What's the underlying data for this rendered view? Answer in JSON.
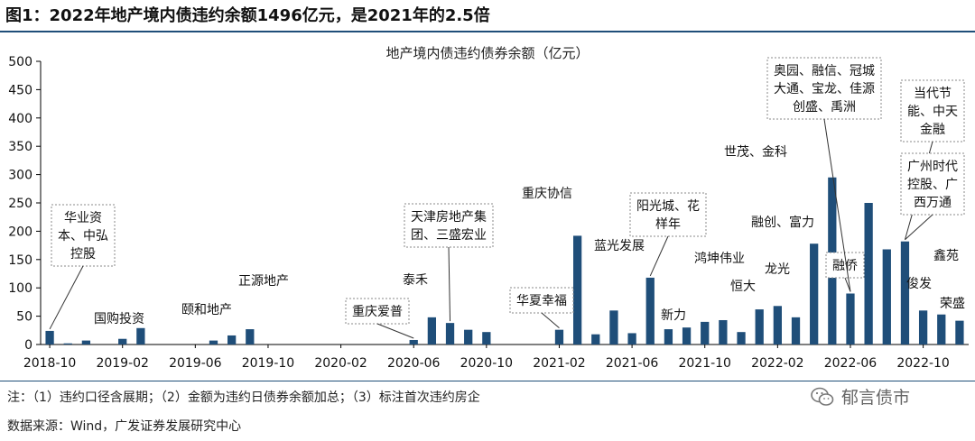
{
  "figure_title": "图1：2022年地产境内债违约余额1496亿元，是2021年的2.5倍",
  "notes": "注：（1）违约口径含展期；（2）金额为违约日债券余额加总；（3）标注首次违约房企",
  "source": "数据来源：Wind，广发证券发展研究中心",
  "watermark": "郁言债市",
  "watermark_icon": "wechat-icon",
  "chart_data": {
    "type": "bar",
    "title": "地产境内债违约债券余额（亿元）",
    "xlabel": "",
    "ylabel": "",
    "ylim": [
      0,
      500
    ],
    "yticks": [
      0,
      50,
      100,
      150,
      200,
      250,
      300,
      350,
      400,
      450,
      500
    ],
    "grid": false,
    "legend": "none",
    "bar_color": "#1f4e79",
    "categories": [
      "2018-10",
      "2018-11",
      "2018-12",
      "2019-01",
      "2019-02",
      "2019-03",
      "2019-04",
      "2019-05",
      "2019-06",
      "2019-07",
      "2019-08",
      "2019-09",
      "2019-10",
      "2019-11",
      "2019-12",
      "2020-01",
      "2020-02",
      "2020-03",
      "2020-04",
      "2020-05",
      "2020-06",
      "2020-07",
      "2020-08",
      "2020-09",
      "2020-10",
      "2020-11",
      "2020-12",
      "2021-01",
      "2021-02",
      "2021-03",
      "2021-04",
      "2021-05",
      "2021-06",
      "2021-07",
      "2021-08",
      "2021-09",
      "2021-10",
      "2021-11",
      "2021-12",
      "2022-01",
      "2022-02",
      "2022-03",
      "2022-04",
      "2022-05",
      "2022-06",
      "2022-07",
      "2022-08",
      "2022-09",
      "2022-10",
      "2022-11",
      "2022-12"
    ],
    "x_tick_labels": [
      "2018-10",
      "2019-02",
      "2019-06",
      "2019-10",
      "2020-02",
      "2020-06",
      "2020-10",
      "2021-02",
      "2021-06",
      "2021-10",
      "2022-02",
      "2022-06",
      "2022-10"
    ],
    "values": [
      24,
      2,
      7,
      0,
      10,
      29,
      0,
      0,
      0,
      7,
      16,
      27,
      0,
      0,
      0,
      0,
      0,
      0,
      0,
      0,
      8,
      48,
      38,
      26,
      22,
      0,
      0,
      0,
      26,
      192,
      18,
      60,
      20,
      118,
      27,
      30,
      40,
      43,
      22,
      62,
      68,
      48,
      178,
      295,
      90,
      250,
      168,
      182,
      60,
      53,
      42
    ],
    "annotations": [
      {
        "text": "华业资本、中弘控股",
        "lines": [
          "华业资",
          "本、中弘",
          "控股"
        ],
        "category": "2018-10",
        "boxed": true
      },
      {
        "text": "国购投资",
        "lines": [
          "国购投资"
        ],
        "category": "2019-02",
        "boxed": false
      },
      {
        "text": "颐和地产",
        "lines": [
          "颐和地产"
        ],
        "category": "2019-07",
        "boxed": false
      },
      {
        "text": "正源地产",
        "lines": [
          "正源地产"
        ],
        "category": "2019-09",
        "boxed": false
      },
      {
        "text": "重庆爱普",
        "lines": [
          "重庆爱普"
        ],
        "category": "2020-06",
        "boxed": true
      },
      {
        "text": "泰禾",
        "lines": [
          "泰禾"
        ],
        "category": "2020-07",
        "boxed": false
      },
      {
        "text": "天津房地产集团、三盛宏业",
        "lines": [
          "天津房地产集",
          "团、三盛宏业"
        ],
        "category": "2020-08",
        "boxed": true
      },
      {
        "text": "华夏幸福",
        "lines": [
          "华夏幸福"
        ],
        "category": "2021-02",
        "boxed": true
      },
      {
        "text": "重庆协信",
        "lines": [
          "重庆协信"
        ],
        "category": "2021-03",
        "boxed": false
      },
      {
        "text": "蓝光发展",
        "lines": [
          "蓝光发展"
        ],
        "category": "2021-06",
        "boxed": false
      },
      {
        "text": "阳光城、花样年",
        "lines": [
          "阳光城、花",
          "样年"
        ],
        "category": "2021-07",
        "boxed": true
      },
      {
        "text": "新力",
        "lines": [
          "新力"
        ],
        "category": "2021-08",
        "boxed": false
      },
      {
        "text": "鸿坤伟业",
        "lines": [
          "鸿坤伟业"
        ],
        "category": "2021-10",
        "boxed": false
      },
      {
        "text": "恒大",
        "lines": [
          "恒大"
        ],
        "category": "2021-12",
        "boxed": false
      },
      {
        "text": "龙光",
        "lines": [
          "龙光"
        ],
        "category": "2022-02",
        "boxed": false
      },
      {
        "text": "融创、富力",
        "lines": [
          "融创、富力"
        ],
        "category": "2022-03",
        "boxed": false
      },
      {
        "text": "世茂、金科",
        "lines": [
          "世茂、金科"
        ],
        "category": "2022-04",
        "boxed": false
      },
      {
        "text": "融侨",
        "lines": [
          "融侨"
        ],
        "category": "2022-06",
        "boxed": true
      },
      {
        "text": "奥园、融信、冠城大通、宝龙、佳源创盛、禹洲",
        "lines": [
          "奥园、融信、冠城",
          "大通、宝龙、佳源",
          "创盛、禹洲"
        ],
        "category": "2022-06",
        "boxed": true
      },
      {
        "text": "当代节能、中天金融",
        "lines": [
          "当代节",
          "能、中天",
          "金融"
        ],
        "category": "2022-09",
        "boxed": true
      },
      {
        "text": "广州时代控股、广西万通",
        "lines": [
          "广州时代",
          "控股、广",
          "西万通"
        ],
        "category": "2022-09",
        "boxed": true
      },
      {
        "text": "俊发",
        "lines": [
          "俊发"
        ],
        "category": "2022-10",
        "boxed": false
      },
      {
        "text": "鑫苑",
        "lines": [
          "鑫苑"
        ],
        "category": "2022-11",
        "boxed": false
      },
      {
        "text": "荣盛",
        "lines": [
          "荣盛"
        ],
        "category": "2022-12",
        "boxed": false
      }
    ]
  }
}
